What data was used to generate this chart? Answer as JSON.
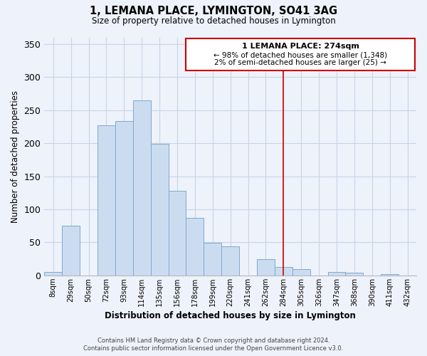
{
  "title": "1, LEMANA PLACE, LYMINGTON, SO41 3AG",
  "subtitle": "Size of property relative to detached houses in Lymington",
  "xlabel": "Distribution of detached houses by size in Lymington",
  "ylabel": "Number of detached properties",
  "bar_color": "#ccdcf0",
  "bar_edge_color": "#7aaad0",
  "bin_labels": [
    "8sqm",
    "29sqm",
    "50sqm",
    "72sqm",
    "93sqm",
    "114sqm",
    "135sqm",
    "156sqm",
    "178sqm",
    "199sqm",
    "220sqm",
    "241sqm",
    "262sqm",
    "284sqm",
    "305sqm",
    "326sqm",
    "347sqm",
    "368sqm",
    "390sqm",
    "411sqm",
    "432sqm"
  ],
  "bar_heights": [
    5,
    75,
    0,
    227,
    233,
    265,
    199,
    128,
    87,
    49,
    44,
    0,
    25,
    13,
    10,
    0,
    5,
    4,
    0,
    2,
    0
  ],
  "ylim": [
    0,
    360
  ],
  "yticks": [
    0,
    50,
    100,
    150,
    200,
    250,
    300,
    350
  ],
  "annotation_title": "1 LEMANA PLACE: 274sqm",
  "annotation_line1": "← 98% of detached houses are smaller (1,348)",
  "annotation_line2": "2% of semi-detached houses are larger (25) →",
  "vertical_line_color": "#cc0000",
  "vline_x": 13.0,
  "footer_line1": "Contains HM Land Registry data © Crown copyright and database right 2024.",
  "footer_line2": "Contains public sector information licensed under the Open Government Licence v3.0.",
  "grid_color": "#c8d4e8",
  "background_color": "#eef2fa"
}
